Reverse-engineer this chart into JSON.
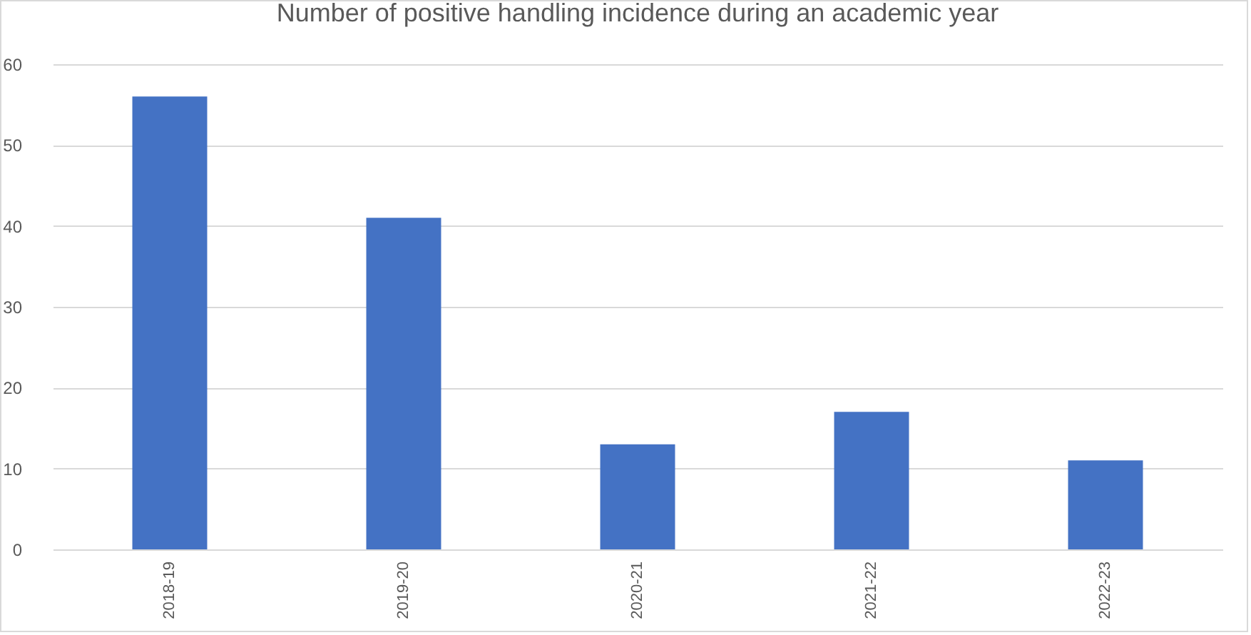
{
  "chart_data": {
    "type": "bar",
    "title": "Number of positive handling incidence during an academic year",
    "categories": [
      "2018-19",
      "2019-20",
      "2020-21",
      "2021-22",
      "2022-23"
    ],
    "values": [
      56,
      41,
      13,
      17,
      11
    ],
    "color": "#4472c4",
    "ylim": [
      0,
      60
    ],
    "yticks": [
      0,
      10,
      20,
      30,
      40,
      50,
      60
    ],
    "grid": "y"
  }
}
